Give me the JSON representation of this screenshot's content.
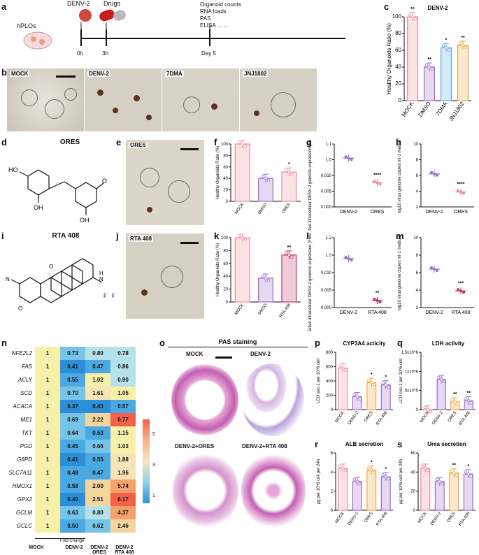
{
  "panel_letters": {
    "a": "a",
    "b": "b",
    "c": "c",
    "d": "d",
    "e": "e",
    "f": "f",
    "g": "g",
    "h": "h",
    "i": "i",
    "j": "j",
    "k": "k",
    "l": "l",
    "m": "m",
    "n": "n",
    "o": "o",
    "p": "p",
    "q": "q",
    "r": "r",
    "s": "s"
  },
  "panel_a": {
    "hplos": "hPLOs",
    "denv": "DENV-2",
    "drugs": "Drugs",
    "t0": "0h",
    "t3": "3h",
    "day5": "Day 5",
    "readouts": [
      "Organoid counts",
      "RNA loads",
      "PAS",
      "ELISA ... ..."
    ]
  },
  "panel_b": {
    "labels": [
      "MOCK",
      "DENV-2",
      "7DMA",
      "JNJ1802"
    ]
  },
  "panel_d": {
    "title": "ORES",
    "atoms": [
      "HO",
      "OH",
      "OH",
      "O"
    ]
  },
  "panel_e": {
    "label": "ORES"
  },
  "panel_i": {
    "title": "RTA 408",
    "atoms": [
      "N",
      "O",
      "O",
      "N",
      "H",
      "F",
      "F"
    ]
  },
  "panel_j": {
    "label": "RTA 408"
  },
  "panel_n": {
    "genes": [
      "NFE2L2",
      "FAS",
      "ACLY",
      "SCD",
      "ACACA",
      "ME1",
      "TKT",
      "PGD",
      "G6PD",
      "SLC7A11",
      "HMOX1",
      "GPX2",
      "GCLM",
      "GCLC"
    ],
    "columns": [
      "MOCK",
      "DENV-2",
      "DENV-2 ORES",
      "DENV-2 RTA 408"
    ],
    "values": [
      [
        1,
        0.73,
        0.8,
        0.78
      ],
      [
        1,
        0.41,
        0.47,
        0.86
      ],
      [
        1,
        0.55,
        1.02,
        0.9
      ],
      [
        1,
        0.7,
        1.61,
        1.05
      ],
      [
        1,
        0.37,
        0.43,
        0.57
      ],
      [
        1,
        0.69,
        2.22,
        6.77
      ],
      [
        1,
        0.64,
        0.53,
        1.15
      ],
      [
        1,
        0.45,
        0.66,
        1.03
      ],
      [
        1,
        0.41,
        0.55,
        1.88
      ],
      [
        1,
        0.48,
        0.47,
        1.96
      ],
      [
        1,
        0.58,
        2.0,
        5.74
      ],
      [
        1,
        0.4,
        2.51,
        6.17
      ],
      [
        1,
        0.63,
        0.8,
        4.37
      ],
      [
        1,
        0.5,
        0.62,
        2.46
      ]
    ],
    "fold_change": "Fold Change",
    "scale_ticks": [
      "5",
      "3",
      "1"
    ]
  },
  "panel_o": {
    "title": "PAS staining",
    "labels": [
      "MOCK",
      "DENV-2",
      "DENV-2+ORES",
      "DENV-2+RTA 408"
    ]
  },
  "chart_data": [
    {
      "id": "c",
      "type": "bar",
      "title": "DENV-2",
      "ylabel": "Healthy Organoids Ratio (%)",
      "categories": [
        "MOCK",
        "DMSO",
        "7DMA",
        "JNJ1802"
      ],
      "values": [
        100,
        40,
        63,
        66
      ],
      "ylim": [
        0,
        100
      ],
      "yticks": [
        "0",
        "20",
        "40",
        "60",
        "80",
        "100"
      ],
      "sig": [
        "***",
        "**",
        "**",
        "*",
        "**"
      ],
      "colors": [
        "#f08a9a",
        "#9b6bd1",
        "#5aa7e6",
        "#f0a640"
      ]
    },
    {
      "id": "f",
      "type": "bar",
      "ylabel": "Healthy Organoids Ratio (%)",
      "categories": [
        "MOCK",
        "DMSO",
        "ORES"
      ],
      "values": [
        100,
        40,
        51
      ],
      "ylim": [
        0,
        100
      ],
      "yticks": [
        "0",
        "20",
        "40",
        "60",
        "80",
        "100"
      ],
      "sig": [
        "*"
      ],
      "colors": [
        "#f08a9a",
        "#9b6bd1",
        "#f08a9a"
      ]
    },
    {
      "id": "g",
      "type": "scatter",
      "ylabel": "Relative intracellular DENV-2 genome expression (Fold by DENV=1)",
      "categories": [
        "DENV-2",
        "ORES"
      ],
      "values": [
        1.0,
        0.0077
      ],
      "yticks": [
        "0.000",
        "0.005",
        "0.010",
        "1.0",
        "1.1"
      ],
      "sig": [
        "****"
      ],
      "colors": [
        "#9b6bd1",
        "#f08a9a"
      ]
    },
    {
      "id": "h",
      "type": "scatter",
      "ylabel": "log10 virus genome copies ml-1 medium",
      "categories": [
        "DENV-2",
        "ORES"
      ],
      "values": [
        6.2,
        3.9
      ],
      "ylim": [
        2,
        10
      ],
      "yticks": [
        "2",
        "4",
        "6",
        "8",
        "10"
      ],
      "sig": [
        "****"
      ],
      "colors": [
        "#9b6bd1",
        "#f08a9a"
      ]
    },
    {
      "id": "k",
      "type": "bar",
      "ylabel": "Healthy Organoids Ratio (%)",
      "categories": [
        "MOCK",
        "DMSO",
        "RTA 408"
      ],
      "values": [
        100,
        37,
        73
      ],
      "ylim": [
        0,
        100
      ],
      "yticks": [
        "0",
        "20",
        "40",
        "60",
        "80",
        "100"
      ],
      "sig": [
        "**"
      ],
      "colors": [
        "#f08a9a",
        "#9b6bd1",
        "#c0306a"
      ]
    },
    {
      "id": "l",
      "type": "scatter",
      "ylabel": "Relative intracellular DENV-2 genome expression (Fold by DENV=1)",
      "categories": [
        "DENV-2",
        "RTA 408"
      ],
      "values": [
        1.0,
        0.002
      ],
      "yticks": [
        "0.000",
        "0.005",
        "0.010",
        "1.0",
        "1.2"
      ],
      "sig": [
        "**"
      ],
      "colors": [
        "#9b6bd1",
        "#c0306a"
      ]
    },
    {
      "id": "m",
      "type": "scatter",
      "ylabel": "log10 virus genome copies ml-1 medium",
      "categories": [
        "DENV-2",
        "RTA 408"
      ],
      "values": [
        6.4,
        3.9
      ],
      "ylim": [
        2,
        10
      ],
      "yticks": [
        "2",
        "4",
        "6",
        "8",
        "10"
      ],
      "sig": [
        "***"
      ],
      "colors": [
        "#9b6bd1",
        "#c0306a"
      ]
    },
    {
      "id": "p",
      "type": "bar",
      "title": "CYP3A4 acticity",
      "ylabel": "LCU sec-1 per 10^6 cell",
      "categories": [
        "MOCK",
        "DENV-2",
        "ORES",
        "RTA 408"
      ],
      "values": [
        580,
        180,
        380,
        345
      ],
      "ylim": [
        0,
        800
      ],
      "yticks": [
        "0",
        "200",
        "400",
        "600",
        "800"
      ],
      "sig": [
        "*",
        "*"
      ],
      "colors": [
        "#f08a9a",
        "#9b6bd1",
        "#f0a640",
        "#9b6bd1"
      ]
    },
    {
      "id": "q",
      "type": "bar",
      "title": "LDH activity",
      "ylabel": "LCU sec-1 per 10^6 cell",
      "categories": [
        "MOCK",
        "DENV-2",
        "ORES",
        "RTA 408"
      ],
      "values": [
        200,
        790000,
        200000,
        230000
      ],
      "ylim": [
        0,
        1500000
      ],
      "yticks": [
        "0",
        "5x10^5",
        "1x10^6",
        "1.5x10^6"
      ],
      "sig": [
        "**",
        "**"
      ],
      "colors": [
        "#f08a9a",
        "#9b6bd1",
        "#f0a640",
        "#9b6bd1"
      ]
    },
    {
      "id": "r",
      "type": "bar",
      "title": "ALB secretion",
      "ylabel": "µg per 10^6 cell per 24h",
      "categories": [
        "MOCK",
        "DENV-2",
        "ORES",
        "RTA 408"
      ],
      "values": [
        4.4,
        3.0,
        4.2,
        3.5
      ],
      "ylim": [
        0,
        6
      ],
      "yticks": [
        "0",
        "2",
        "4",
        "6"
      ],
      "sig": [
        "*",
        "*"
      ],
      "colors": [
        "#f08a9a",
        "#9b6bd1",
        "#f0a640",
        "#9b6bd1"
      ]
    },
    {
      "id": "s",
      "type": "bar",
      "title": "Urea secretion",
      "ylabel": "µg per 10^6 cell per 24h",
      "categories": [
        "MOCK",
        "DENV-2",
        "ORES",
        "RTA 408"
      ],
      "values": [
        44,
        30,
        39,
        38
      ],
      "ylim": [
        0,
        60
      ],
      "yticks": [
        "0",
        "20",
        "40",
        "60"
      ],
      "sig": [
        "**",
        "*"
      ],
      "colors": [
        "#f08a9a",
        "#9b6bd1",
        "#f0a640",
        "#9b6bd1"
      ]
    }
  ]
}
